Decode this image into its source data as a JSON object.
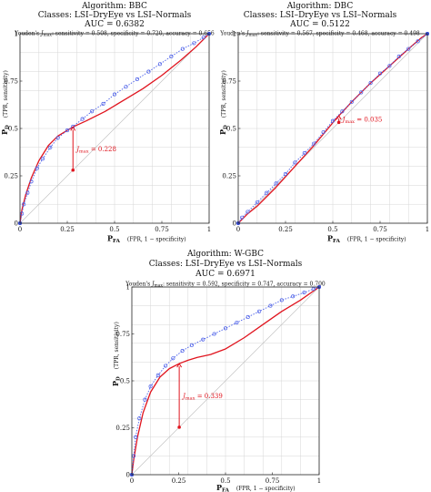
{
  "chart_data": [
    {
      "type": "line",
      "title": [
        "Algorithm: BBC",
        "Classes: LSI–DryEye vs LSI–Normals",
        "AUC = 0.6382"
      ],
      "subtitle": [
        "Youden's ",
        "J",
        "max",
        ": sensitivity = 0.508, specificity = 0.720, accuracy = 0.656"
      ],
      "xlabel": [
        "P",
        "FA",
        "(FPR, 1 − specificity)"
      ],
      "ylabel": [
        "P",
        "D",
        "(TPR, sensitivity)"
      ],
      "xlim": [
        0,
        1
      ],
      "ylim": [
        0,
        1
      ],
      "x_ticks": [
        {
          "v": 0,
          "label": "0"
        },
        {
          "v": 0.25,
          "label": "0.25"
        },
        {
          "v": 0.5,
          "label": "0.5"
        },
        {
          "v": 0.75,
          "label": "0.75"
        },
        {
          "v": 1,
          "label": "1"
        }
      ],
      "y_ticks": [
        {
          "v": 0,
          "label": "0"
        },
        {
          "v": 0.25,
          "label": "0.25"
        },
        {
          "v": 0.5,
          "label": "0.5"
        },
        {
          "v": 0.75,
          "label": "0.75"
        },
        {
          "v": 1,
          "label": "1"
        }
      ],
      "grid": true,
      "series": [
        {
          "style": "fitted-curve",
          "color": "#e0141e",
          "x": [
            0,
            0.01,
            0.03,
            0.06,
            0.1,
            0.15,
            0.2,
            0.28,
            0.35,
            0.45,
            0.55,
            0.65,
            0.75,
            0.85,
            0.93,
            1
          ],
          "y": [
            0,
            0.07,
            0.15,
            0.24,
            0.33,
            0.41,
            0.46,
            0.508,
            0.54,
            0.59,
            0.65,
            0.71,
            0.78,
            0.86,
            0.93,
            1
          ]
        },
        {
          "style": "empirical-points",
          "color": "#4a5ee8",
          "x": [
            0,
            0.01,
            0.02,
            0.04,
            0.06,
            0.09,
            0.12,
            0.16,
            0.2,
            0.25,
            0.28,
            0.33,
            0.38,
            0.44,
            0.5,
            0.56,
            0.62,
            0.68,
            0.74,
            0.8,
            0.86,
            0.92,
            0.97,
            1
          ],
          "y": [
            0,
            0.05,
            0.1,
            0.16,
            0.22,
            0.29,
            0.34,
            0.4,
            0.45,
            0.49,
            0.51,
            0.55,
            0.59,
            0.63,
            0.68,
            0.72,
            0.76,
            0.8,
            0.84,
            0.88,
            0.92,
            0.95,
            0.98,
            1
          ]
        }
      ],
      "jmax": {
        "x": 0.28,
        "y_low": 0.28,
        "y_high": 0.508,
        "label": [
          "J",
          "max",
          " = 0.228"
        ]
      }
    },
    {
      "type": "line",
      "title": [
        "Algorithm: DBC",
        "Classes: LSI–DryEye vs LSI–Normals",
        "AUC = 0.5122"
      ],
      "subtitle": [
        "Youden's ",
        "J",
        "max",
        ": sensitivity = 0.567, specificity = 0.468, accuracy = 0.498"
      ],
      "xlabel": [
        "P",
        "FA",
        "(FPR, 1 − specificity)"
      ],
      "ylabel": [
        "P",
        "D",
        "(TPR, sensitivity)"
      ],
      "xlim": [
        0,
        1
      ],
      "ylim": [
        0,
        1
      ],
      "x_ticks": [
        {
          "v": 0,
          "label": "0"
        },
        {
          "v": 0.25,
          "label": "0.25"
        },
        {
          "v": 0.5,
          "label": "0.5"
        },
        {
          "v": 0.75,
          "label": "0.75"
        },
        {
          "v": 1,
          "label": "1"
        }
      ],
      "y_ticks": [
        {
          "v": 0,
          "label": "0"
        },
        {
          "v": 0.25,
          "label": "0.25"
        },
        {
          "v": 0.5,
          "label": "0.5"
        },
        {
          "v": 0.75,
          "label": "0.75"
        },
        {
          "v": 1,
          "label": "1"
        }
      ],
      "grid": true,
      "series": [
        {
          "style": "fitted-curve",
          "color": "#e0141e",
          "x": [
            0,
            0.02,
            0.05,
            0.1,
            0.15,
            0.2,
            0.3,
            0.4,
            0.5,
            0.532,
            0.6,
            0.7,
            0.8,
            0.9,
            0.97,
            1
          ],
          "y": [
            0,
            0.02,
            0.05,
            0.09,
            0.14,
            0.19,
            0.3,
            0.41,
            0.53,
            0.567,
            0.64,
            0.74,
            0.83,
            0.92,
            0.98,
            1
          ]
        },
        {
          "style": "empirical-points",
          "color": "#4a5ee8",
          "x": [
            0,
            0.02,
            0.05,
            0.1,
            0.15,
            0.2,
            0.25,
            0.3,
            0.35,
            0.4,
            0.45,
            0.5,
            0.55,
            0.6,
            0.65,
            0.7,
            0.75,
            0.8,
            0.85,
            0.9,
            0.95,
            1
          ],
          "y": [
            0,
            0.03,
            0.06,
            0.11,
            0.16,
            0.21,
            0.26,
            0.32,
            0.37,
            0.42,
            0.48,
            0.54,
            0.59,
            0.64,
            0.69,
            0.74,
            0.79,
            0.83,
            0.88,
            0.92,
            0.96,
            1
          ]
        }
      ],
      "jmax": {
        "x": 0.532,
        "y_low": 0.532,
        "y_high": 0.567,
        "label": [
          "J",
          "max",
          " = 0.035"
        ]
      }
    },
    {
      "type": "line",
      "title": [
        "Algorithm: W-GBC",
        "Classes: LSI–DryEye vs LSI–Normals",
        "AUC = 0.6971"
      ],
      "subtitle": [
        "Youden's ",
        "J",
        "max",
        ": sensitivity = 0.592, specificity = 0.747, accuracy = 0.700"
      ],
      "xlabel": [
        "P",
        "FA",
        "(FPR, 1 − specificity)"
      ],
      "ylabel": [
        "P",
        "D",
        "(TPR, sensitivity)"
      ],
      "xlim": [
        0,
        1
      ],
      "ylim": [
        0,
        1
      ],
      "x_ticks": [
        {
          "v": 0,
          "label": "0"
        },
        {
          "v": 0.25,
          "label": "0.25"
        },
        {
          "v": 0.5,
          "label": "0.5"
        },
        {
          "v": 0.75,
          "label": "0.75"
        },
        {
          "v": 1,
          "label": "1"
        }
      ],
      "y_ticks": [
        {
          "v": 0,
          "label": "0"
        },
        {
          "v": 0.25,
          "label": "0.25"
        },
        {
          "v": 0.5,
          "label": "0.5"
        },
        {
          "v": 0.75,
          "label": "0.75"
        },
        {
          "v": 1,
          "label": "1"
        }
      ],
      "grid": true,
      "series": [
        {
          "style": "fitted-curve",
          "color": "#e0141e",
          "x": [
            0,
            0.01,
            0.03,
            0.06,
            0.1,
            0.15,
            0.2,
            0.253,
            0.3,
            0.35,
            0.42,
            0.5,
            0.6,
            0.7,
            0.8,
            0.9,
            1
          ],
          "y": [
            0,
            0.08,
            0.2,
            0.33,
            0.44,
            0.52,
            0.565,
            0.592,
            0.61,
            0.625,
            0.64,
            0.67,
            0.73,
            0.8,
            0.87,
            0.93,
            1
          ]
        },
        {
          "style": "empirical-points",
          "color": "#4a5ee8",
          "x": [
            0,
            0.01,
            0.02,
            0.04,
            0.07,
            0.1,
            0.14,
            0.18,
            0.22,
            0.27,
            0.32,
            0.38,
            0.44,
            0.5,
            0.56,
            0.62,
            0.68,
            0.74,
            0.8,
            0.86,
            0.92,
            0.97,
            1
          ],
          "y": [
            0,
            0.1,
            0.2,
            0.3,
            0.4,
            0.47,
            0.53,
            0.58,
            0.62,
            0.66,
            0.69,
            0.72,
            0.75,
            0.78,
            0.81,
            0.84,
            0.87,
            0.9,
            0.93,
            0.95,
            0.97,
            0.99,
            1
          ]
        }
      ],
      "jmax": {
        "x": 0.253,
        "y_low": 0.253,
        "y_high": 0.592,
        "label": [
          "J",
          "max",
          " = 0.339"
        ]
      }
    }
  ]
}
